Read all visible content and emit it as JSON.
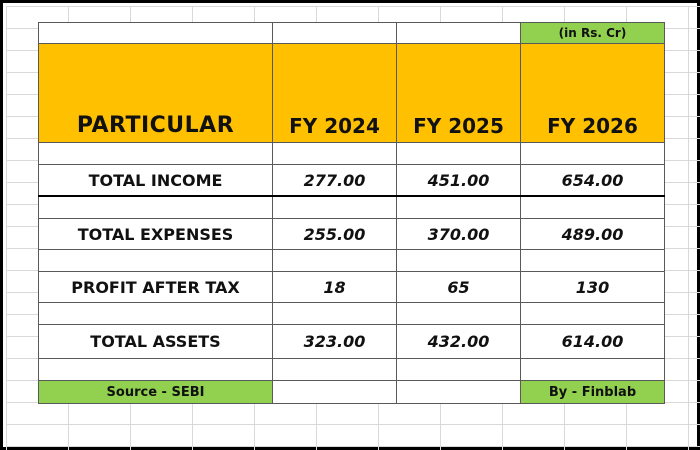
{
  "table": {
    "unit_note": "(in Rs. Cr)",
    "header": {
      "particular": "PARTICULAR",
      "years": [
        "FY 2024",
        "FY 2025",
        "FY 2026"
      ]
    },
    "rows": [
      {
        "label": "TOTAL INCOME",
        "values": [
          "277.00",
          "451.00",
          "654.00"
        ]
      },
      {
        "label": "TOTAL EXPENSES",
        "values": [
          "255.00",
          "370.00",
          "489.00"
        ]
      },
      {
        "label": "PROFIT AFTER TAX",
        "values": [
          "18",
          "65",
          "130"
        ]
      },
      {
        "label": "TOTAL ASSETS",
        "values": [
          "323.00",
          "432.00",
          "614.00"
        ]
      }
    ],
    "footer": {
      "source": "Source - SEBI",
      "credit": "By - Finblab"
    }
  },
  "colors": {
    "header_fill": "#ffc000",
    "green_fill": "#92d050"
  }
}
